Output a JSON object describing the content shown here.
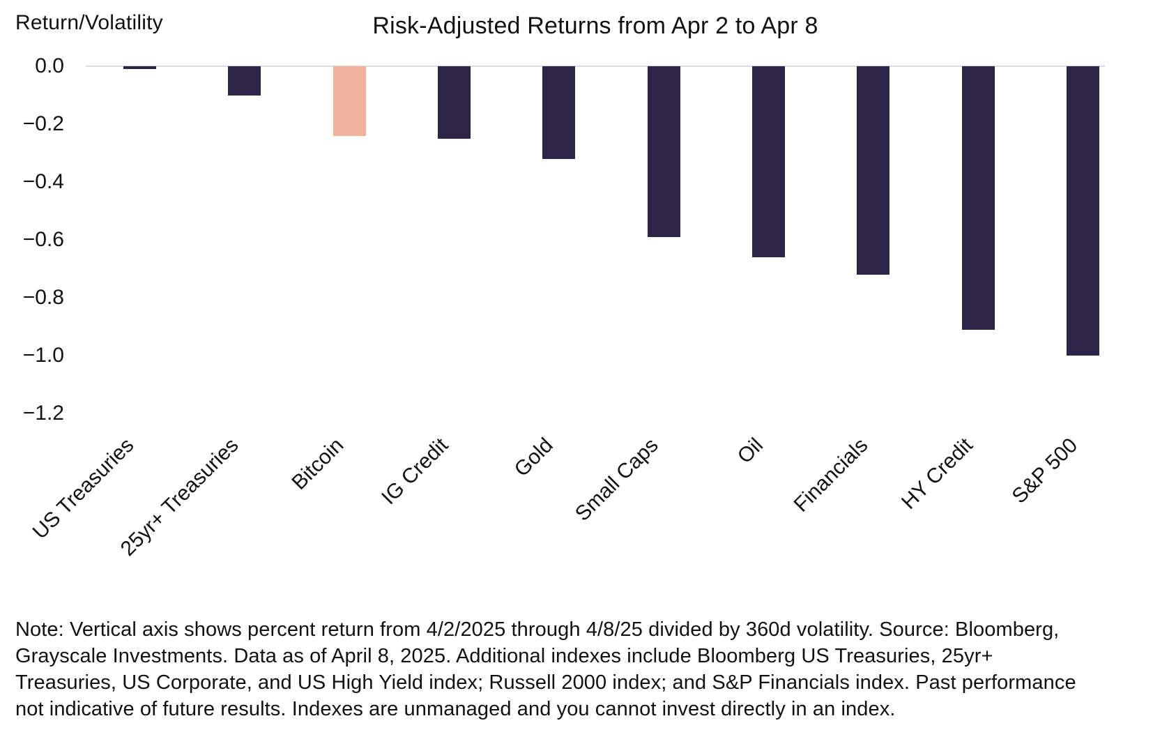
{
  "chart_data": {
    "type": "bar",
    "title": "Risk-Adjusted Returns from Apr 2 to Apr 8",
    "ylabel": "Return/Volatility",
    "xlabel": "",
    "categories": [
      "US Treasuries",
      "25yr+ Treasuries",
      "Bitcoin",
      "IG Credit",
      "Gold",
      "Small Caps",
      "Oil",
      "Financials",
      "HY Credit",
      "S&P 500"
    ],
    "values": [
      -0.01,
      -0.1,
      -0.24,
      -0.25,
      -0.32,
      -0.59,
      -0.66,
      -0.72,
      -0.91,
      -1.0
    ],
    "highlight_category": "Bitcoin",
    "highlight_index": 2,
    "yticks": [
      0.0,
      -0.2,
      -0.4,
      -0.6,
      -0.8,
      -1.0,
      -1.2
    ],
    "ytick_labels": [
      "0.0",
      "−0.2",
      "−0.4",
      "−0.6",
      "−0.8",
      "−1.0",
      "−1.2"
    ],
    "ylim": [
      -1.28,
      0.05
    ],
    "grid": false,
    "legend": false,
    "colors": {
      "bar": "#2d2547",
      "highlight": "#f1b19d",
      "baseline": "#dcdcdc"
    }
  },
  "note": "Note: Vertical axis shows percent return from 4/2/2025 through 4/8/25 divided by 360d volatility. Source: Bloomberg, Grayscale Investments. Data as of April 8, 2025. Additional indexes include Bloomberg US Treasuries, 25yr+ Treasuries, US Corporate, and US High Yield index; Russell 2000 index; and S&P Financials index. Past performance not indicative of future results. Indexes are unmanaged and you cannot invest directly in an index."
}
